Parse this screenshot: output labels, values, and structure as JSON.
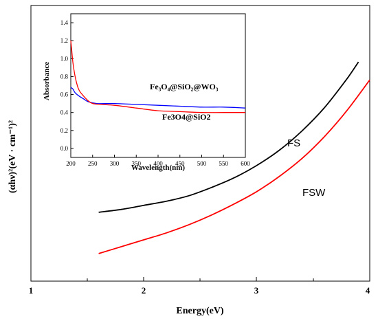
{
  "chart_data": [
    {
      "type": "line",
      "xlabel": "Energy(eV)",
      "ylabel": "(αhν)²(eV · cm⁻¹)²",
      "xlim": [
        1,
        4
      ],
      "ylim": [
        0,
        10
      ],
      "x_ticks": [
        "1",
        "2",
        "3",
        "4"
      ],
      "y_ticks_shown": false,
      "grid": false,
      "series": [
        {
          "name": "FS",
          "color": "#000000",
          "x": [
            1.6,
            1.8,
            2.0,
            2.2,
            2.4,
            2.6,
            2.8,
            3.0,
            3.2,
            3.4,
            3.6,
            3.8,
            3.9
          ],
          "y": [
            2.5,
            2.6,
            2.75,
            2.9,
            3.1,
            3.4,
            3.75,
            4.2,
            4.75,
            5.45,
            6.3,
            7.35,
            7.95
          ]
        },
        {
          "name": "FSW",
          "color": "#ff0000",
          "x": [
            1.6,
            1.8,
            2.0,
            2.2,
            2.4,
            2.6,
            2.8,
            3.0,
            3.2,
            3.4,
            3.6,
            3.8,
            4.0
          ],
          "y": [
            1.0,
            1.25,
            1.5,
            1.75,
            2.05,
            2.4,
            2.8,
            3.25,
            3.8,
            4.45,
            5.25,
            6.2,
            7.3
          ]
        }
      ]
    },
    {
      "type": "line",
      "xlabel": "Wavelength(nm)",
      "ylabel": "Absorbance",
      "xlim": [
        200,
        600
      ],
      "ylim": [
        -0.1,
        1.5
      ],
      "x_ticks": [
        "200",
        "250",
        "300",
        "350",
        "400",
        "450",
        "500",
        "550",
        "600"
      ],
      "y_ticks": [
        "0.0",
        "0.2",
        "0.4",
        "0.6",
        "0.8",
        "1.0",
        "1.2",
        "1.4"
      ],
      "grid": false,
      "series": [
        {
          "name": "Fe₃O₄@SiO₂@WO₃",
          "color": "#0000ff",
          "x": [
            200,
            205,
            210,
            220,
            230,
            240,
            260,
            300,
            350,
            400,
            450,
            500,
            550,
            600
          ],
          "y": [
            0.68,
            0.66,
            0.62,
            0.58,
            0.55,
            0.52,
            0.5,
            0.5,
            0.49,
            0.48,
            0.47,
            0.46,
            0.46,
            0.45
          ]
        },
        {
          "name": "Fe3O4@SiO2",
          "color": "#ff0000",
          "x": [
            200,
            202,
            205,
            210,
            215,
            220,
            230,
            240,
            250,
            270,
            300,
            350,
            400,
            450,
            500,
            550,
            600
          ],
          "y": [
            1.2,
            1.1,
            0.95,
            0.8,
            0.7,
            0.64,
            0.58,
            0.53,
            0.5,
            0.49,
            0.48,
            0.45,
            0.42,
            0.41,
            0.4,
            0.4,
            0.4
          ]
        }
      ]
    }
  ]
}
